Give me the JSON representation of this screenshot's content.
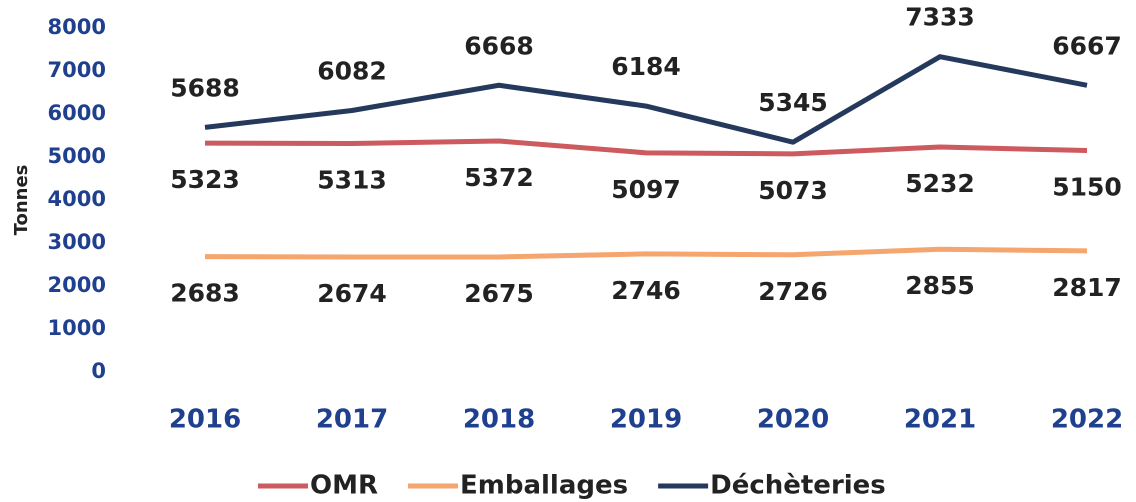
{
  "chart_data": {
    "type": "line",
    "y_axis_label": "Tonnes",
    "categories": [
      "2016",
      "2017",
      "2018",
      "2019",
      "2020",
      "2021",
      "2022"
    ],
    "series": [
      {
        "name": "OMR",
        "color": "#cc5a5e",
        "values": [
          5323,
          5313,
          5372,
          5097,
          5073,
          5232,
          5150
        ]
      },
      {
        "name": "Emballages",
        "color": "#f5a56e",
        "values": [
          2683,
          2674,
          2675,
          2746,
          2726,
          2855,
          2817
        ]
      },
      {
        "name": "Déchèteries",
        "color": "#24395c",
        "values": [
          5688,
          6082,
          6668,
          6184,
          5345,
          7333,
          6667
        ]
      }
    ],
    "ylim": [
      0,
      8000
    ],
    "yticks": [
      0,
      1000,
      2000,
      3000,
      4000,
      5000,
      6000,
      7000,
      8000
    ],
    "grid": false,
    "legend": "bottom"
  }
}
